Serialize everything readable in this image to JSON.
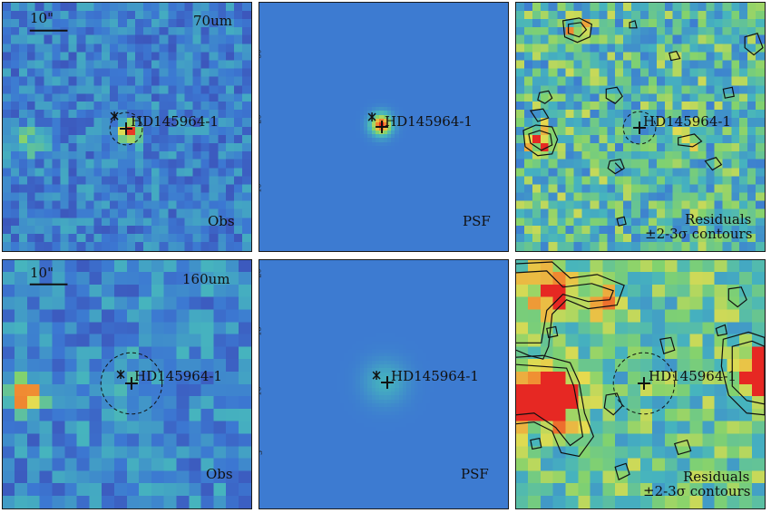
{
  "figure": {
    "rows": [
      {
        "band": "70um",
        "scale_bar": "10\"",
        "obs_label": "Obs",
        "psf_label": "PSF",
        "residual_label_1": "Residuals",
        "residual_label_2": "±2-3σ contours",
        "source_name": "HD145964-1",
        "psf_ticks": [
          "30",
          "20",
          "10"
        ]
      },
      {
        "band": "160um",
        "scale_bar": "10\"",
        "obs_label": "Obs",
        "psf_label": "PSF",
        "residual_label_1": "Residuals",
        "residual_label_2": "±2-3σ contours",
        "source_name": "HD145964-1",
        "psf_ticks": [
          "20",
          "15",
          "10",
          "5"
        ]
      }
    ],
    "colors": {
      "background_blue": "#3f7fd0",
      "psf_background": "#4a7dcc",
      "hot": "#e83a2a",
      "contour": "#111111",
      "frame": "#1a1a1a"
    }
  }
}
